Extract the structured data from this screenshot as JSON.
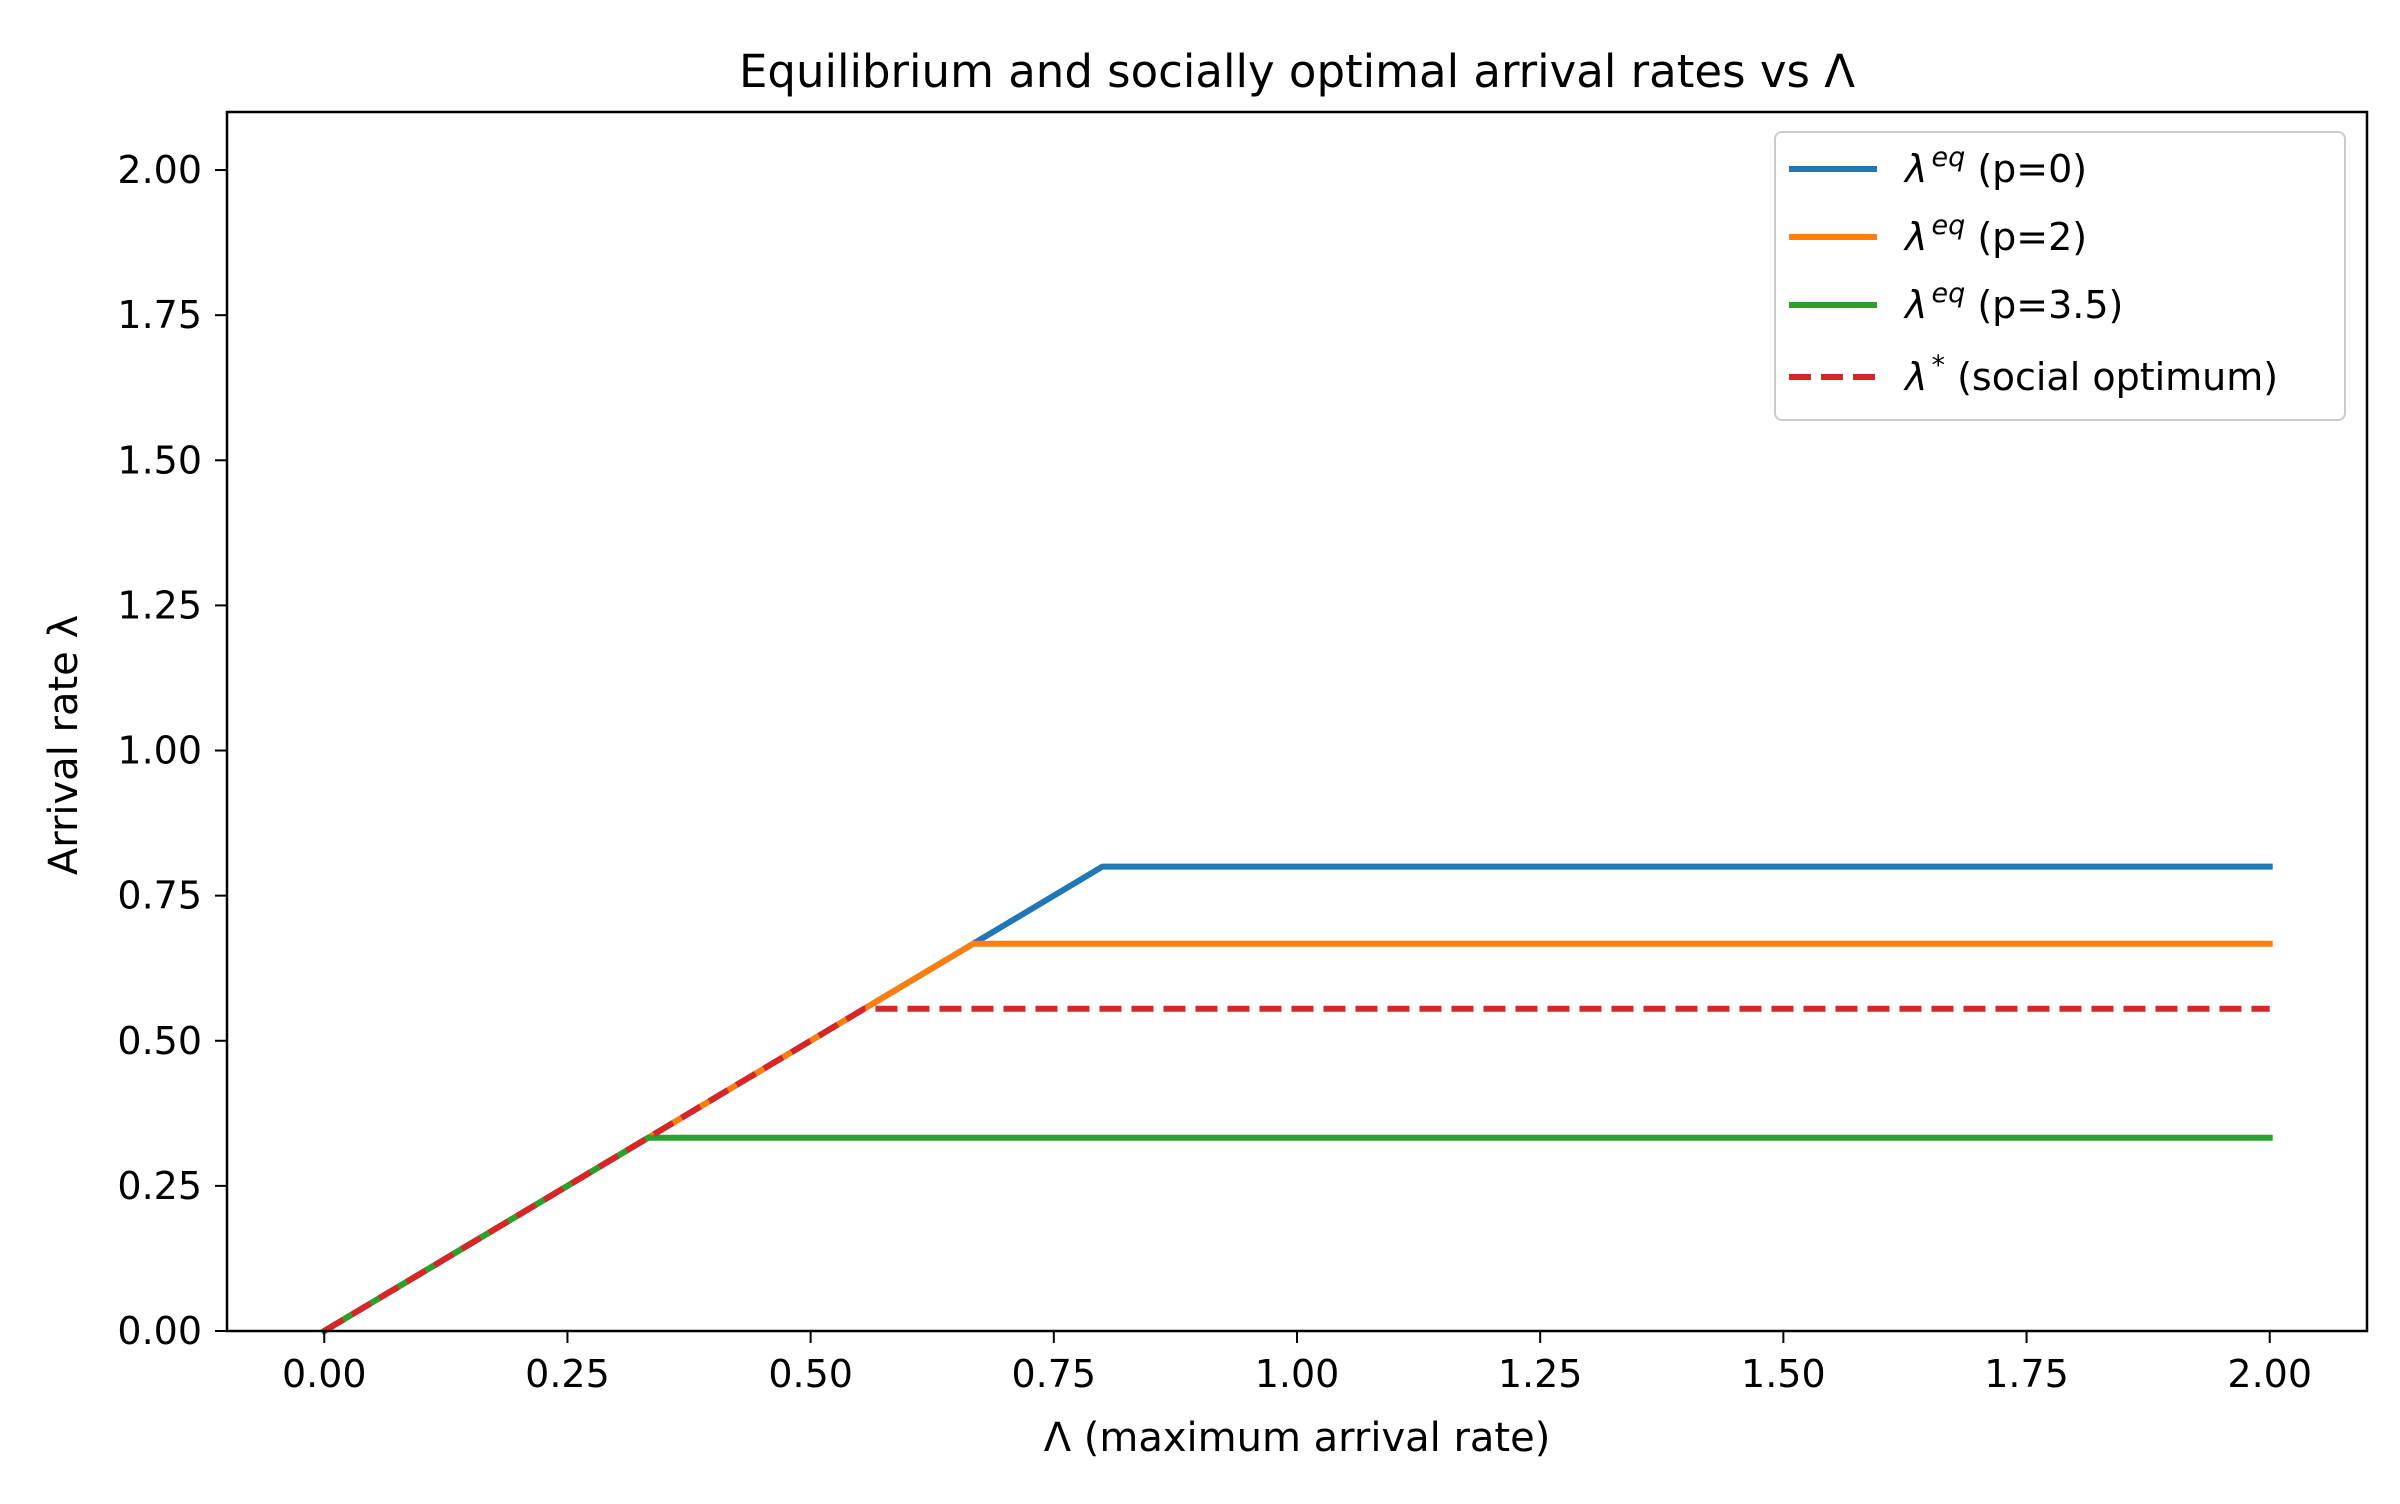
{
  "chart_data": {
    "type": "line",
    "title": "Equilibrium and socially optimal arrival rates vs Λ",
    "xlabel": "Λ (maximum arrival rate)",
    "ylabel": "Arrival rate λ",
    "xlim": [
      -0.1,
      2.1
    ],
    "ylim": [
      0,
      2.1
    ],
    "xticks": [
      0.0,
      0.25,
      0.5,
      0.75,
      1.0,
      1.25,
      1.5,
      1.75,
      2.0
    ],
    "xtick_labels": [
      "0.00",
      "0.25",
      "0.50",
      "0.75",
      "1.00",
      "1.25",
      "1.50",
      "1.75",
      "2.00"
    ],
    "yticks": [
      0.0,
      0.25,
      0.5,
      0.75,
      1.0,
      1.25,
      1.5,
      1.75,
      2.0
    ],
    "ytick_labels": [
      "0.00",
      "0.25",
      "0.50",
      "0.75",
      "1.00",
      "1.25",
      "1.50",
      "1.75",
      "2.00"
    ],
    "grid": false,
    "legend_position": "top-right",
    "series": [
      {
        "name": "(p=0)",
        "legend_symbol": "λ",
        "legend_superscript": "eq",
        "color": "#1f77b4",
        "style": "solid",
        "x": [
          0.0,
          0.8,
          2.0
        ],
        "y": [
          0.0,
          0.8,
          0.8
        ]
      },
      {
        "name": "(p=2)",
        "legend_symbol": "λ",
        "legend_superscript": "eq",
        "color": "#ff7f0e",
        "style": "solid",
        "x": [
          0.0,
          0.667,
          2.0
        ],
        "y": [
          0.0,
          0.667,
          0.667
        ]
      },
      {
        "name": "(p=3.5)",
        "legend_symbol": "λ",
        "legend_superscript": "eq",
        "color": "#2ca02c",
        "style": "solid",
        "x": [
          0.0,
          0.333,
          2.0
        ],
        "y": [
          0.0,
          0.333,
          0.333
        ]
      },
      {
        "name": "(social optimum)",
        "legend_symbol": "λ",
        "legend_superscript": "*",
        "color": "#d62728",
        "style": "dashed",
        "x": [
          0.0,
          0.555,
          2.0
        ],
        "y": [
          0.0,
          0.555,
          0.555
        ]
      }
    ]
  }
}
